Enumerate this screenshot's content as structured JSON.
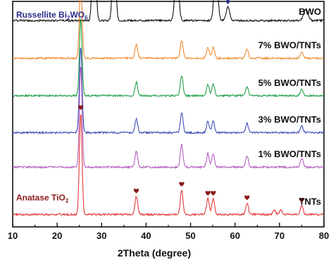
{
  "chart_data": {
    "type": "line",
    "xlabel": "2Theta (degree)",
    "ylabel": "",
    "xlim": [
      10,
      80
    ],
    "x_ticks": [
      10,
      20,
      30,
      40,
      50,
      60,
      70,
      80
    ],
    "grid": false,
    "legend": "none",
    "series": [
      {
        "name": "BWO",
        "color": "#111111",
        "baseline_frac": 0.915,
        "peaks": [
          {
            "x": 28.3,
            "height": 0.55,
            "width": 0.35
          },
          {
            "x": 32.8,
            "height": 0.36,
            "width": 0.35
          },
          {
            "x": 46.9,
            "height": 0.27,
            "width": 0.4
          },
          {
            "x": 55.7,
            "height": 0.24,
            "width": 0.4
          },
          {
            "x": 58.4,
            "height": 0.06,
            "width": 0.4
          },
          {
            "x": 75.9,
            "height": 0.05,
            "width": 0.5
          }
        ]
      },
      {
        "name": "7% BWO/TNTs",
        "color": "#f08a2e",
        "baseline_frac": 0.748,
        "peaks": [
          {
            "x": 25.3,
            "height": 0.34,
            "width": 0.3
          },
          {
            "x": 37.8,
            "height": 0.06,
            "width": 0.3
          },
          {
            "x": 48.0,
            "height": 0.08,
            "width": 0.3
          },
          {
            "x": 53.9,
            "height": 0.05,
            "width": 0.3
          },
          {
            "x": 55.1,
            "height": 0.05,
            "width": 0.3
          },
          {
            "x": 62.7,
            "height": 0.04,
            "width": 0.3
          },
          {
            "x": 75.0,
            "height": 0.03,
            "width": 0.3
          }
        ]
      },
      {
        "name": "5% BWO/TNTs",
        "color": "#22a24a",
        "baseline_frac": 0.582,
        "peaks": [
          {
            "x": 25.3,
            "height": 0.34,
            "width": 0.3
          },
          {
            "x": 37.8,
            "height": 0.06,
            "width": 0.3
          },
          {
            "x": 48.0,
            "height": 0.09,
            "width": 0.3
          },
          {
            "x": 53.9,
            "height": 0.05,
            "width": 0.3
          },
          {
            "x": 55.1,
            "height": 0.05,
            "width": 0.3
          },
          {
            "x": 62.7,
            "height": 0.04,
            "width": 0.3
          },
          {
            "x": 75.0,
            "height": 0.03,
            "width": 0.3
          }
        ]
      },
      {
        "name": "3% BWO/TNTs",
        "color": "#3e4fb5",
        "baseline_frac": 0.418,
        "peaks": [
          {
            "x": 25.3,
            "height": 0.38,
            "width": 0.3
          },
          {
            "x": 37.8,
            "height": 0.06,
            "width": 0.3
          },
          {
            "x": 48.0,
            "height": 0.09,
            "width": 0.3
          },
          {
            "x": 53.9,
            "height": 0.05,
            "width": 0.3
          },
          {
            "x": 55.1,
            "height": 0.05,
            "width": 0.3
          },
          {
            "x": 62.7,
            "height": 0.04,
            "width": 0.3
          },
          {
            "x": 75.0,
            "height": 0.03,
            "width": 0.3
          }
        ]
      },
      {
        "name": "1% BWO/TNTs",
        "color": "#b45ec0",
        "baseline_frac": 0.265,
        "peaks": [
          {
            "x": 25.3,
            "height": 0.45,
            "width": 0.3
          },
          {
            "x": 37.8,
            "height": 0.07,
            "width": 0.3
          },
          {
            "x": 48.0,
            "height": 0.1,
            "width": 0.3
          },
          {
            "x": 53.9,
            "height": 0.06,
            "width": 0.3
          },
          {
            "x": 55.1,
            "height": 0.06,
            "width": 0.3
          },
          {
            "x": 62.7,
            "height": 0.05,
            "width": 0.3
          },
          {
            "x": 75.0,
            "height": 0.04,
            "width": 0.3
          }
        ]
      },
      {
        "name": "TNTs",
        "color": "#e23a3a",
        "baseline_frac": 0.055,
        "peaks": [
          {
            "x": 25.3,
            "height": 0.45,
            "width": 0.3
          },
          {
            "x": 37.8,
            "height": 0.08,
            "width": 0.3
          },
          {
            "x": 48.0,
            "height": 0.11,
            "width": 0.3
          },
          {
            "x": 53.9,
            "height": 0.07,
            "width": 0.3
          },
          {
            "x": 55.1,
            "height": 0.07,
            "width": 0.3
          },
          {
            "x": 62.7,
            "height": 0.05,
            "width": 0.3
          },
          {
            "x": 68.8,
            "height": 0.02,
            "width": 0.3
          },
          {
            "x": 70.3,
            "height": 0.02,
            "width": 0.3
          },
          {
            "x": 75.0,
            "height": 0.04,
            "width": 0.3
          }
        ]
      }
    ],
    "phase_markers": [
      {
        "phase_prefix": "Russellite Bi",
        "phase_sub1": "2",
        "phase_mid": "WO",
        "phase_sub2": "6",
        "symbol": "diamond",
        "color": "#2c2c8c",
        "positions": [
          28.3,
          32.8,
          46.9,
          55.7,
          58.4
        ]
      },
      {
        "phase_prefix": "Anatase TiO",
        "phase_sub1": "2",
        "phase_mid": "",
        "phase_sub2": "",
        "symbol": "heart",
        "color": "#8b1a1a",
        "positions": [
          25.3,
          37.8,
          48.0,
          53.9,
          55.1,
          62.7,
          75.0
        ]
      }
    ]
  }
}
